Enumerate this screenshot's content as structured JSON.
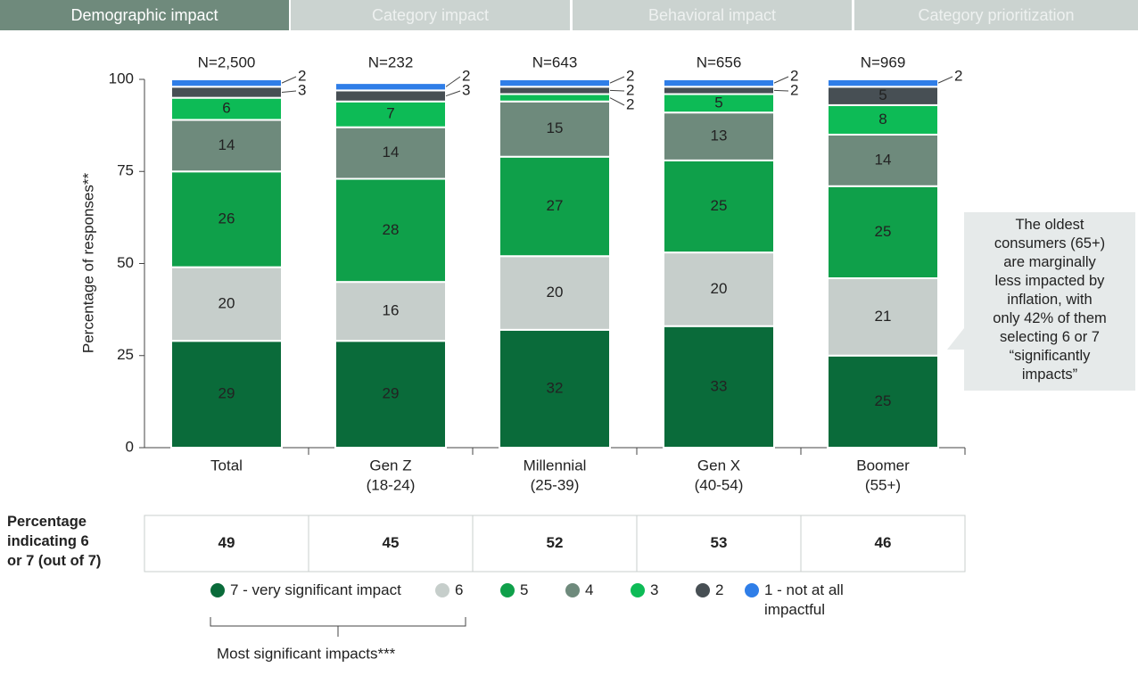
{
  "tabs": [
    "Demographic impact",
    "Category impact",
    "Behavioral impact",
    "Category prioritization"
  ],
  "chart_data": {
    "type": "stacked_bar",
    "y_label": "Percentage of responses**",
    "categories": [
      [
        "Total"
      ],
      [
        "Gen Z",
        "(18-24)"
      ],
      [
        "Millennial",
        "(25-39)"
      ],
      [
        "Gen X",
        "(40-54)"
      ],
      [
        "Boomer",
        "(55+)"
      ]
    ],
    "n_labels": [
      "N=2,500",
      "N=232",
      "N=643",
      "N=656",
      "N=969"
    ],
    "ylim": [
      0,
      100
    ],
    "yticks": [
      0,
      25,
      50,
      75,
      100
    ],
    "grid": false,
    "series": [
      {
        "name": "7 - very significant impact",
        "color": "#0a6b3a",
        "values": [
          29,
          29,
          32,
          33,
          25
        ]
      },
      {
        "name": "6",
        "color": "#c6cecb",
        "values": [
          20,
          16,
          20,
          20,
          21
        ]
      },
      {
        "name": "5",
        "color": "#0fa04a",
        "values": [
          26,
          28,
          27,
          25,
          25
        ]
      },
      {
        "name": "4",
        "color": "#6e8a7c",
        "values": [
          14,
          14,
          15,
          13,
          14
        ]
      },
      {
        "name": "3",
        "color": "#0dbb56",
        "values": [
          6,
          7,
          2,
          5,
          8
        ]
      },
      {
        "name": "2",
        "color": "#474f54",
        "values": [
          3,
          3,
          2,
          2,
          5
        ]
      },
      {
        "name": "1 - not at all impactful",
        "color": "#2f7ee8",
        "values": [
          2,
          2,
          2,
          2,
          2
        ]
      }
    ],
    "annotation": [
      "The oldest",
      "consumers (65+)",
      "are marginally",
      "less impacted by",
      "inflation, with",
      "only 42% of them",
      "selecting 6 or 7",
      "“significantly",
      "impacts”"
    ],
    "summary_table": {
      "header": [
        "Percentage",
        "indicating 6",
        "or 7 (out of 7)"
      ],
      "values": [
        49,
        45,
        52,
        53,
        46
      ]
    },
    "bracket_label": "Most significant impacts***"
  }
}
